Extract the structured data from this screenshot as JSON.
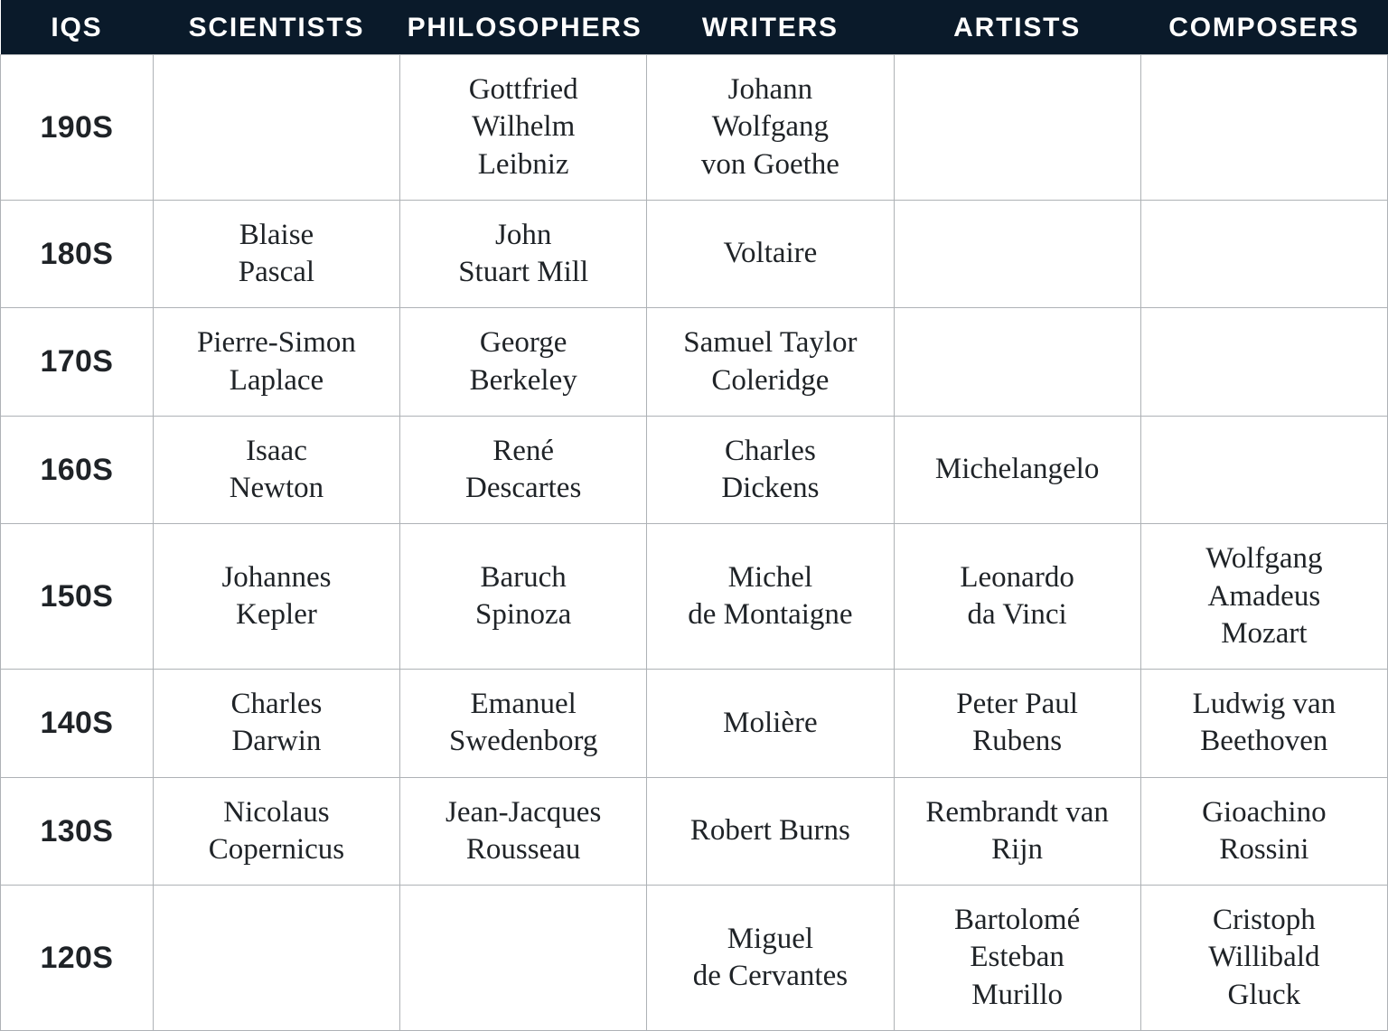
{
  "table": {
    "type": "table",
    "background_color": "#ffffff",
    "border_color": "#aeb2b6",
    "header": {
      "bg_color": "#0a1a2a",
      "fg_color": "#ffffff",
      "font_family": "sans-serif",
      "font_size_pt": 22,
      "letter_spacing_em": 0.06,
      "labels": [
        "IQS",
        "SCIENTISTS",
        "PHILOSOPHERS",
        "WRITERS",
        "ARTISTS",
        "COMPOSERS"
      ]
    },
    "body": {
      "font_family": "serif",
      "font_size_pt": 24,
      "row_label_font_family": "sans-serif",
      "row_label_font_weight": 700,
      "cell_fg_color": "#1f2327"
    },
    "column_widths_pct": [
      11,
      17.8,
      17.8,
      17.8,
      17.8,
      17.8
    ],
    "columns": [
      "IQS",
      "SCIENTISTS",
      "PHILOSOPHERS",
      "WRITERS",
      "ARTISTS",
      "COMPOSERS"
    ],
    "rows": [
      {
        "iq": "190S",
        "scientists": "",
        "philosophers": "Gottfried\nWilhelm\nLeibniz",
        "writers": "Johann\nWolfgang\nvon Goethe",
        "artists": "",
        "composers": ""
      },
      {
        "iq": "180S",
        "scientists": "Blaise\nPascal",
        "philosophers": "John\nStuart Mill",
        "writers": "Voltaire",
        "artists": "",
        "composers": ""
      },
      {
        "iq": "170S",
        "scientists": "Pierre-Simon\nLaplace",
        "philosophers": "George\nBerkeley",
        "writers": "Samuel Taylor\nColeridge",
        "artists": "",
        "composers": ""
      },
      {
        "iq": "160S",
        "scientists": "Isaac\nNewton",
        "philosophers": "René\nDescartes",
        "writers": "Charles\nDickens",
        "artists": "Michelangelo",
        "composers": ""
      },
      {
        "iq": "150S",
        "scientists": "Johannes\nKepler",
        "philosophers": "Baruch\nSpinoza",
        "writers": "Michel\nde Montaigne",
        "artists": "Leonardo\nda Vinci",
        "composers": "Wolfgang\nAmadeus\nMozart"
      },
      {
        "iq": "140S",
        "scientists": "Charles\nDarwin",
        "philosophers": "Emanuel\nSwedenborg",
        "writers": "Molière",
        "artists": "Peter Paul\nRubens",
        "composers": "Ludwig van\nBeethoven"
      },
      {
        "iq": "130S",
        "scientists": "Nicolaus\nCopernicus",
        "philosophers": "Jean-Jacques\nRousseau",
        "writers": "Robert Burns",
        "artists": "Rembrandt van\nRijn",
        "composers": "Gioachino\nRossini"
      },
      {
        "iq": "120S",
        "scientists": "",
        "philosophers": "",
        "writers": "Miguel\nde Cervantes",
        "artists": "Bartolomé\nEsteban\nMurillo",
        "composers": "Cristoph\nWillibald\nGluck"
      }
    ]
  }
}
